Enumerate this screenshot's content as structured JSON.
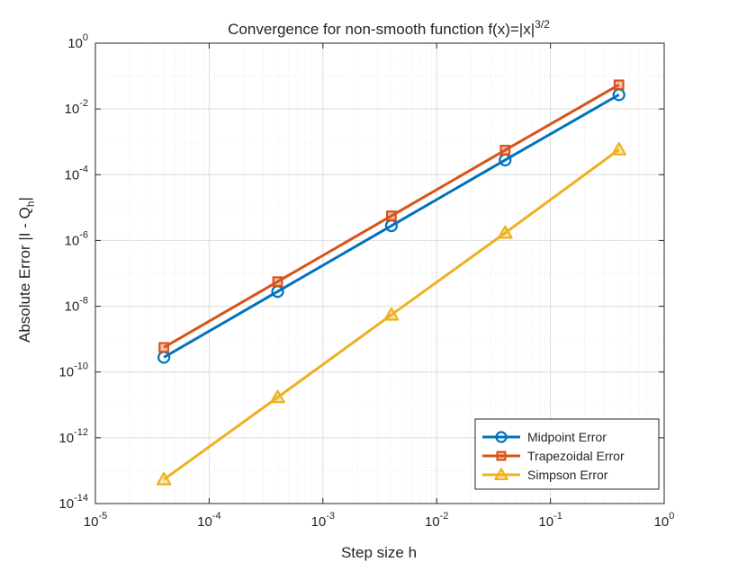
{
  "chart_data": {
    "type": "line",
    "title": "Convergence for non-smooth function f(x)=|x|",
    "title_superscript": "3/2",
    "xlabel": "Step size h",
    "ylabel": "Absolute Error |I - Q",
    "ylabel_subscript": "h",
    "ylabel_suffix": "|",
    "xscale": "log",
    "yscale": "log",
    "xlim": [
      1e-05,
      1
    ],
    "ylim": [
      1e-14,
      1
    ],
    "grid": true,
    "minor_grid": true,
    "legend_position": "bottom-right",
    "x_ticks": [
      {
        "base": "10",
        "exp": "-5",
        "value": 1e-05
      },
      {
        "base": "10",
        "exp": "-4",
        "value": 0.0001
      },
      {
        "base": "10",
        "exp": "-3",
        "value": 0.001
      },
      {
        "base": "10",
        "exp": "-2",
        "value": 0.01
      },
      {
        "base": "10",
        "exp": "-1",
        "value": 0.1
      },
      {
        "base": "10",
        "exp": "0",
        "value": 1
      }
    ],
    "y_ticks": [
      {
        "base": "10",
        "exp": "-14",
        "value": 1e-14
      },
      {
        "base": "10",
        "exp": "-12",
        "value": 1e-12
      },
      {
        "base": "10",
        "exp": "-10",
        "value": 1e-10
      },
      {
        "base": "10",
        "exp": "-8",
        "value": 1e-08
      },
      {
        "base": "10",
        "exp": "-6",
        "value": 1e-06
      },
      {
        "base": "10",
        "exp": "-4",
        "value": 0.0001
      },
      {
        "base": "10",
        "exp": "-2",
        "value": 0.01
      },
      {
        "base": "10",
        "exp": "0",
        "value": 1
      }
    ],
    "x": [
      0.4,
      0.04,
      0.004,
      0.0004,
      4e-05
    ],
    "series": [
      {
        "name": "Midpoint Error",
        "marker": "circle",
        "color": "#0072BD",
        "values": [
          0.027,
          0.00028,
          2.8e-06,
          2.8e-08,
          2.8e-10
        ]
      },
      {
        "name": "Trapezoidal Error",
        "marker": "square",
        "color": "#D95319",
        "values": [
          0.054,
          0.00056,
          5.6e-06,
          5.6e-08,
          5.6e-10
        ]
      },
      {
        "name": "Simpson Error",
        "marker": "triangle",
        "color": "#EDB120",
        "values": [
          0.00058,
          1.7e-06,
          5.5e-09,
          1.7e-11,
          5.4e-14
        ]
      }
    ]
  }
}
